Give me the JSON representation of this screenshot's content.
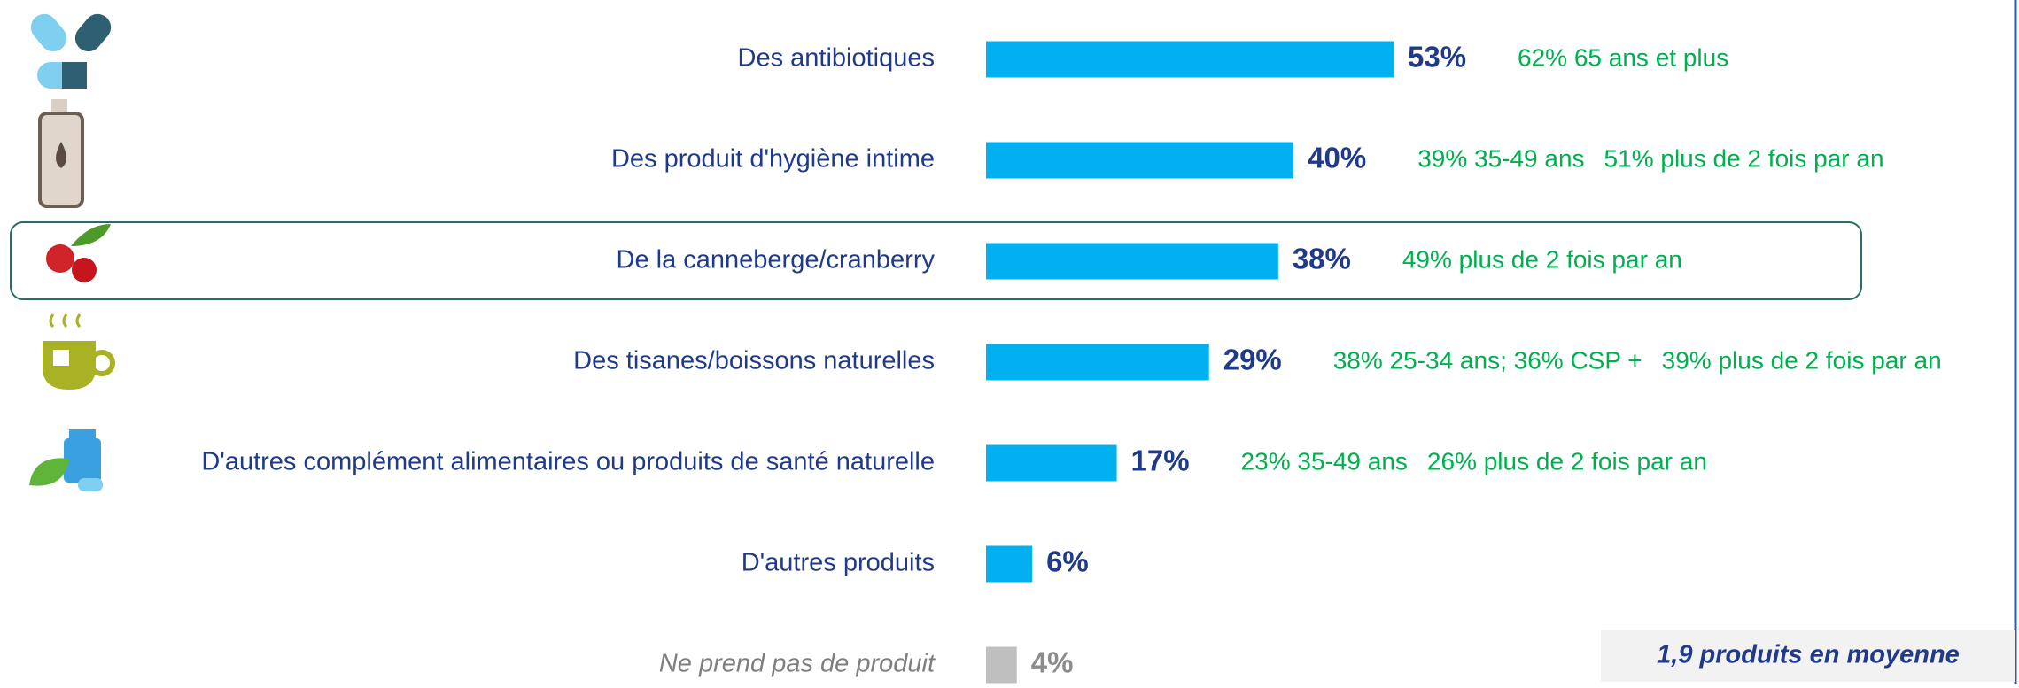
{
  "chart_data": {
    "type": "bar",
    "orientation": "horizontal",
    "categories": [
      "Des antibiotiques",
      "Des produit d'hygiène intime",
      "De la canneberge/cranberry",
      "Des tisanes/boissons naturelles",
      "D'autres complément alimentaires ou produits de santé naturelle",
      "D'autres produits",
      "Ne prend pas de produit"
    ],
    "values": [
      53,
      40,
      38,
      29,
      17,
      6,
      4
    ],
    "value_labels": [
      "53%",
      "40%",
      "38%",
      "29%",
      "17%",
      "6%",
      "4%"
    ],
    "colors": [
      "#00b0f0",
      "#00b0f0",
      "#00b0f0",
      "#00b0f0",
      "#00b0f0",
      "#00b0f0",
      "#bfbfbf"
    ],
    "value_label_colors": [
      "#1f3a8a",
      "#1f3a8a",
      "#1f3a8a",
      "#1f3a8a",
      "#1f3a8a",
      "#1f3a8a",
      "#8c8c8c"
    ],
    "annotations": [
      [
        "62% 65 ans et plus"
      ],
      [
        "39% 35-49 ans",
        "51% plus de 2 fois par an"
      ],
      [
        "49% plus de 2 fois par an"
      ],
      [
        "38% 25-34 ans; 36% CSP +",
        "39% plus de 2 fois par an"
      ],
      [
        "23% 35-49 ans",
        "26% plus de 2 fois par an"
      ],
      [],
      []
    ],
    "highlighted_category": 2,
    "note": "1,9 produits en moyenne"
  }
}
